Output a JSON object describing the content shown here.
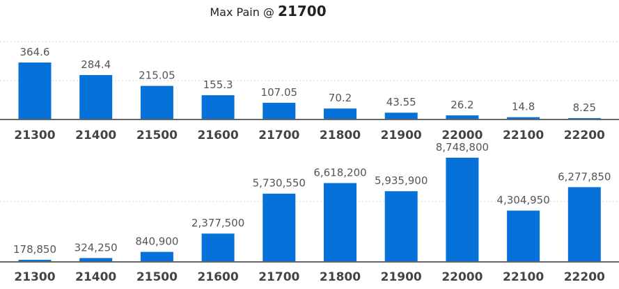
{
  "title": {
    "prefix": "Max Pain @ ",
    "value": "21700"
  },
  "colors": {
    "bar": "#0672d9",
    "axis": "#666666",
    "grid": "#d6d6d6",
    "tick_text": "#444444",
    "label_text": "#555555"
  },
  "chart_data": [
    {
      "type": "bar",
      "title": "Max Pain @ 21700",
      "categories": [
        "21300",
        "21400",
        "21500",
        "21600",
        "21700",
        "21800",
        "21900",
        "22000",
        "22100",
        "22200"
      ],
      "values": [
        364.6,
        284.4,
        215.05,
        155.3,
        107.05,
        70.2,
        43.55,
        26.2,
        14.8,
        8.25
      ],
      "value_labels": [
        "364.6",
        "284.4",
        "215.05",
        "155.3",
        "107.05",
        "70.2",
        "43.55",
        "26.2",
        "14.8",
        "8.25"
      ],
      "ylim": [
        0,
        400
      ],
      "grid": true,
      "xlabel": "",
      "ylabel": ""
    },
    {
      "type": "bar",
      "categories": [
        "21300",
        "21400",
        "21500",
        "21600",
        "21700",
        "21800",
        "21900",
        "22000",
        "22100",
        "22200"
      ],
      "values": [
        178850,
        324250,
        840900,
        2377500,
        5730550,
        6618200,
        5935900,
        8748800,
        4304950,
        6277850
      ],
      "value_labels": [
        "178,850",
        "324,250",
        "840,900",
        "2,377,500",
        "5,730,550",
        "6,618,200",
        "5,935,900",
        "8,748,800",
        "4,304,950",
        "6,277,850"
      ],
      "ylim": [
        0,
        8748800
      ],
      "grid": true,
      "xlabel": "",
      "ylabel": ""
    }
  ]
}
